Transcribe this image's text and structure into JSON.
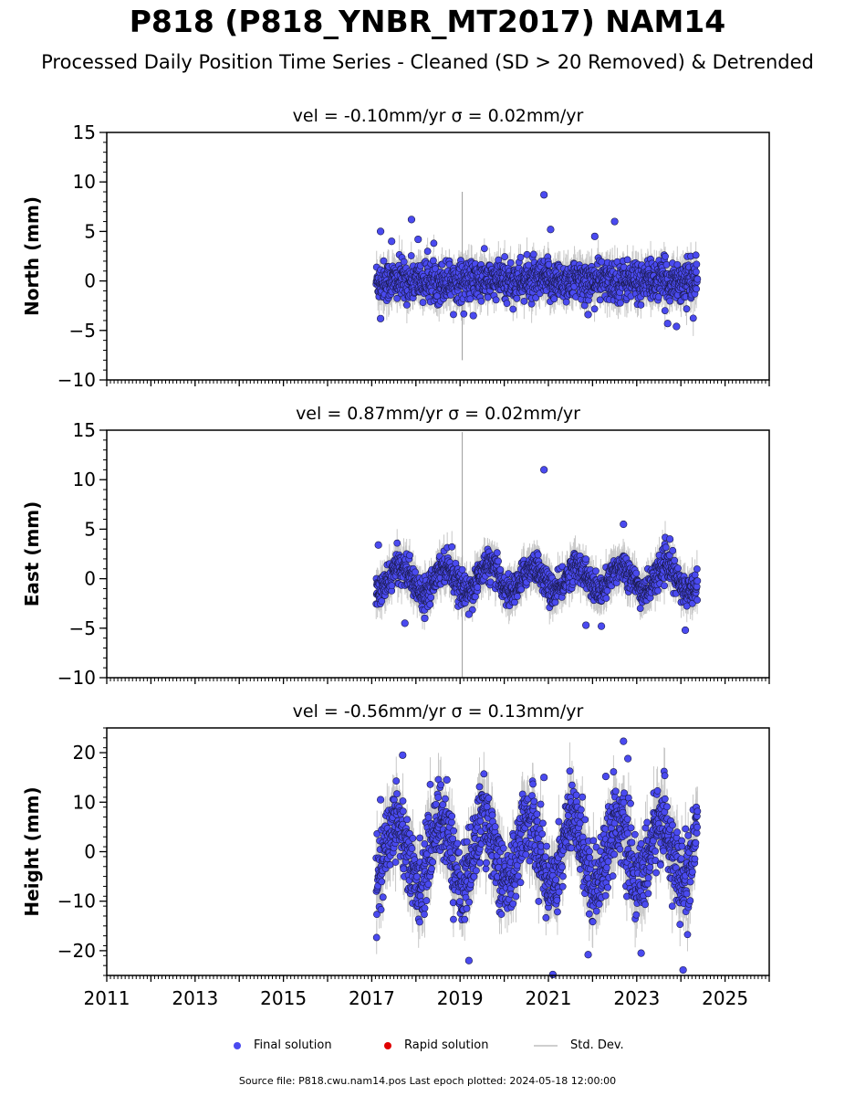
{
  "figure": {
    "title": "P818 (P818_YNBR_MT2017) NAM14",
    "subtitle": "Processed Daily Position Time Series - Cleaned (SD > 20 Removed) & Detrended",
    "source": "Source file: P818.cwu.nam14.pos  Last epoch plotted: 2024-05-18 12:00:00"
  },
  "legend": {
    "final": "Final solution",
    "rapid": "Rapid solution",
    "std": "Std. Dev."
  },
  "colors": {
    "final": "#4a4af0",
    "rapid": "#e00000",
    "std": "#c8c8c8",
    "edge": "#1a1a4a"
  },
  "chart_data": [
    {
      "type": "scatter",
      "title": "vel = -0.10mm/yr   σ = 0.02mm/yr",
      "ylabel": "North (mm)",
      "xlim": [
        2011,
        2026
      ],
      "ylim": [
        -10,
        15
      ],
      "yticks": [
        -10,
        -5,
        0,
        5,
        10,
        15
      ],
      "ytick_labels": [
        "−10",
        "−5",
        "0",
        "5",
        "10",
        "15"
      ],
      "data_span": [
        2017.1,
        2024.38
      ],
      "series": [
        {
          "values_approx": "daily positions scattered around 0 mm, typically within ±2 mm"
        }
      ],
      "outliers": [
        [
          2017.2,
          5.0
        ],
        [
          2017.2,
          -3.8
        ],
        [
          2017.45,
          4.0
        ],
        [
          2017.9,
          6.2
        ],
        [
          2018.05,
          4.2
        ],
        [
          2020.9,
          8.7
        ],
        [
          2021.05,
          5.2
        ],
        [
          2022.5,
          6.0
        ],
        [
          2022.05,
          4.5
        ],
        [
          2023.7,
          -4.3
        ],
        [
          2023.9,
          -4.6
        ],
        [
          2019.3,
          -3.5
        ],
        [
          2021.9,
          -3.4
        ]
      ]
    },
    {
      "type": "scatter",
      "title": "vel = 0.87mm/yr   σ = 0.02mm/yr",
      "ylabel": "East (mm)",
      "xlim": [
        2011,
        2026
      ],
      "ylim": [
        -10,
        15
      ],
      "yticks": [
        -10,
        -5,
        0,
        5,
        10,
        15
      ],
      "ytick_labels": [
        "−10",
        "−5",
        "0",
        "5",
        "10",
        "15"
      ],
      "data_span": [
        2017.1,
        2024.38
      ],
      "series": [
        {
          "values_approx": "daily positions with seasonal wave around 0 mm, amplitude about 1.5 mm"
        }
      ],
      "outliers": [
        [
          2020.9,
          11.0
        ],
        [
          2022.7,
          5.5
        ],
        [
          2017.15,
          3.4
        ],
        [
          2023.75,
          4.0
        ],
        [
          2017.75,
          -4.5
        ],
        [
          2018.2,
          -4.0
        ],
        [
          2022.2,
          -4.8
        ],
        [
          2024.1,
          -5.2
        ],
        [
          2019.2,
          -3.6
        ],
        [
          2021.85,
          -4.7
        ]
      ]
    },
    {
      "type": "scatter",
      "title": "vel = -0.56mm/yr   σ = 0.13mm/yr",
      "ylabel": "Height (mm)",
      "xlim": [
        2011,
        2026
      ],
      "ylim": [
        -25,
        25
      ],
      "yticks": [
        -20,
        -10,
        0,
        10,
        20
      ],
      "ytick_labels": [
        "−20",
        "−10",
        "0",
        "10",
        "20"
      ],
      "data_span": [
        2017.1,
        2024.38
      ],
      "series": [
        {
          "values_approx": "daily positions with strong seasonal signal, amplitude about 7 mm, scatter about ±4 mm"
        }
      ],
      "outliers": [
        [
          2017.7,
          19.5
        ],
        [
          2022.7,
          22.3
        ],
        [
          2022.8,
          18.8
        ],
        [
          2021.9,
          -20.8
        ],
        [
          2023.1,
          -20.5
        ],
        [
          2024.05,
          -23.9
        ],
        [
          2021.1,
          -24.8
        ],
        [
          2019.2,
          -22.0
        ],
        [
          2018.7,
          14.5
        ],
        [
          2020.9,
          15.0
        ],
        [
          2017.2,
          10.5
        ],
        [
          2022.3,
          15.2
        ]
      ]
    }
  ],
  "xaxis": {
    "ticks": [
      2011,
      2013,
      2015,
      2017,
      2019,
      2021,
      2023,
      2025
    ],
    "labels": [
      "2011",
      "2013",
      "2015",
      "2017",
      "2019",
      "2021",
      "2023",
      "2025"
    ]
  }
}
